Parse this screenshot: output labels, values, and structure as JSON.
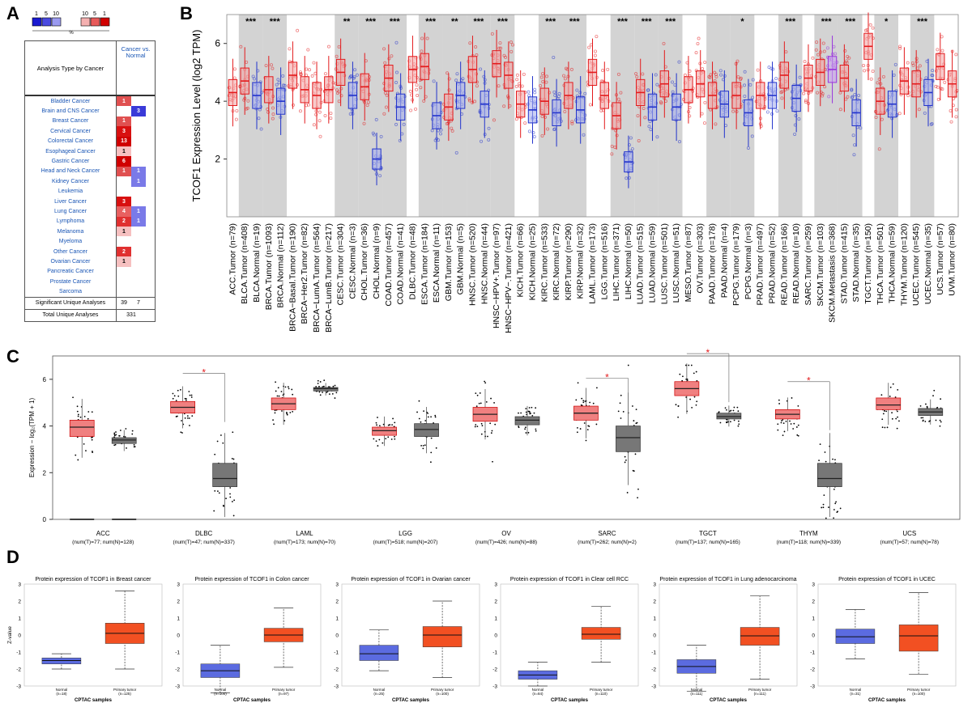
{
  "panel_labels": {
    "a": "A",
    "b": "B",
    "c": "C",
    "d": "D"
  },
  "panelA": {
    "legend_left": [
      "1",
      "5",
      "10"
    ],
    "legend_right": [
      "10",
      "5",
      "1"
    ],
    "legend_unit": "%",
    "legend_colors": [
      "#1a1ad1",
      "#4a4ae0",
      "#9a9af0",
      "#f4b0b0",
      "#e85a5a",
      "#d10000"
    ],
    "header_left": "Analysis Type by Cancer",
    "header_right": "Cancer vs. Normal",
    "rows": [
      {
        "name": "Bladder Cancer",
        "up": "1",
        "down": ""
      },
      {
        "name": "Brain and CNS Cancer",
        "up": "",
        "down": "3"
      },
      {
        "name": "Breast Cancer",
        "up": "1",
        "down": ""
      },
      {
        "name": "Cervical Cancer",
        "up": "3",
        "down": ""
      },
      {
        "name": "Colorectal Cancer",
        "up": "13",
        "down": ""
      },
      {
        "name": "Esophageal Cancer",
        "up": "1",
        "down": ""
      },
      {
        "name": "Gastric Cancer",
        "up": "6",
        "down": ""
      },
      {
        "name": "Head and Neck Cancer",
        "up": "1",
        "down": "1"
      },
      {
        "name": "Kidney Cancer",
        "up": "",
        "down": "1"
      },
      {
        "name": "Leukemia",
        "up": "",
        "down": ""
      },
      {
        "name": "Liver Cancer",
        "up": "3",
        "down": ""
      },
      {
        "name": "Lung Cancer",
        "up": "4",
        "down": "1"
      },
      {
        "name": "Lymphoma",
        "up": "2",
        "down": "1"
      },
      {
        "name": "Melanoma",
        "up": "1",
        "down": ""
      },
      {
        "name": "Myeloma",
        "up": "",
        "down": ""
      },
      {
        "name": "Other Cancer",
        "up": "2",
        "down": ""
      },
      {
        "name": "Ovarian Cancer",
        "up": "1",
        "down": ""
      },
      {
        "name": "Pancreatic Cancer",
        "up": "",
        "down": ""
      },
      {
        "name": "Prostate Cancer",
        "up": "",
        "down": ""
      },
      {
        "name": "Sarcoma",
        "up": "",
        "down": ""
      }
    ],
    "up_colors": {
      "1": "#e05050",
      "2": "#e03030",
      "3": "#d81010",
      "4": "#e86060",
      "6": "#d00000",
      "13": "#d00000"
    },
    "footer_sig_label": "Significant Unique Analyses",
    "footer_sig_up": "39",
    "footer_sig_down": "7",
    "footer_total_label": "Total Unique Analyses",
    "footer_total": "331"
  },
  "chart_data": [
    {
      "type": "box",
      "panel": "B",
      "ylabel": "TCOF1 Expression Level (log2 TPM)",
      "ylim": [
        0,
        7
      ],
      "yticks": [
        "2",
        "4",
        "6"
      ],
      "categories": [
        "ACC.Tumor (n=79)",
        "BLCA.Tumor (n=408)",
        "BLCA.Normal (n=19)",
        "BRCA.Tumor (n=1093)",
        "BRCA.Normal (n=112)",
        "BRCA−Basal.Tumor (n=190)",
        "BRCA−Her2.Tumor (n=82)",
        "BRCA−LumA.Tumor (n=564)",
        "BRCA−LumB.Tumor (n=217)",
        "CESC.Tumor (n=304)",
        "CESC.Normal (n=3)",
        "CHOL.Tumor (n=36)",
        "CHOL.Normal (n=9)",
        "COAD.Tumor (n=457)",
        "COAD.Normal (n=41)",
        "DLBC.Tumor (n=48)",
        "ESCA.Tumor (n=184)",
        "ESCA.Normal (n=11)",
        "GBM.Tumor (n=153)",
        "GBM.Normal (n=5)",
        "HNSC.Tumor (n=520)",
        "HNSC.Normal (n=44)",
        "HNSC−HPV+.Tumor (n=97)",
        "HNSC−HPV−.Tumor (n=421)",
        "KICH.Tumor (n=66)",
        "KICH.Normal (n=25)",
        "KIRC.Tumor (n=533)",
        "KIRC.Normal (n=72)",
        "KIRP.Tumor (n=290)",
        "KIRP.Normal (n=32)",
        "LAML.Tumor (n=173)",
        "LGG.Tumor (n=516)",
        "LIHC.Tumor (n=371)",
        "LIHC.Normal (n=50)",
        "LUAD.Tumor (n=515)",
        "LUAD.Normal (n=59)",
        "LUSC.Tumor (n=501)",
        "LUSC.Normal (n=51)",
        "MESO.Tumor (n=87)",
        "OV.Tumor (n=303)",
        "PAAD.Tumor (n=178)",
        "PAAD.Normal (n=4)",
        "PCPG.Tumor (n=179)",
        "PCPG.Normal (n=3)",
        "PRAD.Tumor (n=497)",
        "PRAD.Normal (n=52)",
        "READ.Tumor (n=166)",
        "READ.Normal (n=10)",
        "SARC.Tumor (n=259)",
        "SKCM.Tumor (n=103)",
        "SKCM.Metastasis (n=368)",
        "STAD.Tumor (n=415)",
        "STAD.Normal (n=35)",
        "TGCT.Tumor (n=150)",
        "THCA.Tumor (n=501)",
        "THCA.Normal (n=59)",
        "THYM.Tumor (n=120)",
        "UCEC.Tumor (n=545)",
        "UCEC.Normal (n=35)",
        "UCS.Tumor (n=57)",
        "UVM.Tumor (n=80)"
      ],
      "kinds": [
        "T",
        "T",
        "N",
        "T",
        "N",
        "T",
        "T",
        "T",
        "T",
        "T",
        "N",
        "T",
        "N",
        "T",
        "N",
        "T",
        "T",
        "N",
        "T",
        "N",
        "T",
        "N",
        "T",
        "T",
        "T",
        "N",
        "T",
        "N",
        "T",
        "N",
        "T",
        "T",
        "T",
        "N",
        "T",
        "N",
        "T",
        "N",
        "T",
        "T",
        "T",
        "N",
        "T",
        "N",
        "T",
        "N",
        "T",
        "N",
        "T",
        "T",
        "M",
        "T",
        "N",
        "T",
        "T",
        "N",
        "T",
        "T",
        "N",
        "T",
        "T"
      ],
      "medians": [
        4.3,
        4.7,
        4.2,
        4.4,
        4.0,
        4.9,
        4.4,
        4.2,
        4.4,
        5.0,
        4.2,
        4.5,
        2.0,
        4.8,
        3.8,
        5.1,
        5.2,
        3.5,
        3.8,
        4.2,
        5.1,
        3.9,
        5.3,
        4.9,
        3.9,
        3.7,
        4.0,
        3.6,
        4.2,
        3.7,
        5.0,
        4.2,
        3.5,
        1.9,
        4.3,
        3.8,
        4.6,
        3.8,
        4.4,
        4.6,
        4.2,
        3.9,
        4.2,
        3.6,
        4.2,
        4.2,
        4.9,
        4.1,
        4.8,
        5.0,
        5.1,
        4.8,
        3.6,
        5.9,
        4.0,
        3.9,
        4.7,
        4.6,
        4.3,
        5.2,
        4.6
      ],
      "significance": [
        "",
        "***",
        "",
        "***",
        "",
        "",
        "",
        "",
        "",
        "**",
        "",
        "***",
        "",
        "***",
        "",
        "",
        "***",
        "",
        "**",
        "",
        "***",
        "",
        "***",
        "",
        "",
        "",
        "***",
        "",
        "***",
        "",
        "",
        "",
        "***",
        "",
        "***",
        "",
        "***",
        "",
        "",
        "",
        "",
        "",
        "*",
        "",
        "",
        "",
        "***",
        "",
        "",
        "***",
        "",
        "***",
        "",
        "",
        "*",
        "",
        "",
        "***",
        "",
        "",
        ""
      ],
      "shaded_pairs": [
        [
          1,
          2
        ],
        [
          3,
          4
        ],
        [
          9,
          10
        ],
        [
          11,
          12
        ],
        [
          13,
          14
        ],
        [
          16,
          17
        ],
        [
          18,
          19
        ],
        [
          20,
          21
        ],
        [
          22,
          23
        ],
        [
          26,
          27
        ],
        [
          28,
          29
        ],
        [
          32,
          33
        ],
        [
          34,
          35
        ],
        [
          36,
          37
        ],
        [
          40,
          41
        ],
        [
          42,
          43
        ],
        [
          46,
          47
        ],
        [
          49,
          50
        ],
        [
          51,
          52
        ],
        [
          54,
          55
        ],
        [
          57,
          58
        ]
      ]
    },
    {
      "type": "box",
      "panel": "C",
      "ylabel": "Expression − log₂(TPM + 1)",
      "ylim": [
        0,
        7
      ],
      "yticks": [
        "0",
        "2",
        "4",
        "6"
      ],
      "groups": [
        {
          "name": "ACC",
          "counts": "(num(T)=77; num(N)=128)",
          "tumor": [
            3.55,
            3.95,
            4.25
          ],
          "normal": [
            3.25,
            3.4,
            3.5
          ],
          "sig": false
        },
        {
          "name": "DLBC",
          "counts": "(num(T)=47; num(N)=337)",
          "tumor": [
            4.55,
            4.8,
            5.05
          ],
          "normal": [
            1.4,
            1.75,
            2.4
          ],
          "sig": true
        },
        {
          "name": "LAML",
          "counts": "(num(T)=173; num(N)=70)",
          "tumor": [
            4.7,
            4.95,
            5.2
          ],
          "normal": [
            5.5,
            5.6,
            5.65
          ],
          "sig": false
        },
        {
          "name": "LGG",
          "counts": "(num(T)=518; num(N)=207)",
          "tumor": [
            3.6,
            3.8,
            3.95
          ],
          "normal": [
            3.55,
            3.85,
            4.1
          ],
          "sig": false
        },
        {
          "name": "OV",
          "counts": "(num(T)=426; num(N)=88)",
          "tumor": [
            4.2,
            4.5,
            4.8
          ],
          "normal": [
            4.05,
            4.25,
            4.4
          ],
          "sig": false
        },
        {
          "name": "SARC",
          "counts": "(num(T)=262; num(N)=2)",
          "tumor": [
            4.25,
            4.55,
            4.85
          ],
          "normal": [
            2.9,
            3.5,
            4.0
          ],
          "sig": true
        },
        {
          "name": "TGCT",
          "counts": "(num(T)=137; num(N)=165)",
          "tumor": [
            5.3,
            5.6,
            5.9
          ],
          "normal": [
            4.3,
            4.4,
            4.55
          ],
          "sig": true
        },
        {
          "name": "THYM",
          "counts": "(num(T)=118; num(N)=339)",
          "tumor": [
            4.3,
            4.5,
            4.7
          ],
          "normal": [
            1.4,
            1.75,
            2.4
          ],
          "sig": true
        },
        {
          "name": "UCS",
          "counts": "(num(T)=57; num(N)=78)",
          "tumor": [
            4.7,
            4.9,
            5.2
          ],
          "normal": [
            4.45,
            4.6,
            4.75
          ],
          "sig": false
        }
      ]
    },
    {
      "type": "box",
      "panel": "D",
      "ylabel": "Z-value",
      "ylim": [
        -3,
        3
      ],
      "yticks": [
        "3",
        "2",
        "1",
        "0",
        "-1",
        "-2",
        "-3"
      ],
      "xlabel": "CPTAC samples",
      "subplots": [
        {
          "title": "Protein expression of TCOF1 in Breast cancer",
          "normal_label": "Normal",
          "normal_n": "(n=18)",
          "tumor_label": "Primary tumor",
          "tumor_n": "(n=125)",
          "normal": [
            -2.0,
            -1.7,
            -1.5,
            -1.35,
            -1.1
          ],
          "tumor": [
            -2.0,
            -0.5,
            0.1,
            0.7,
            2.6
          ]
        },
        {
          "title": "Protein expression of TCOF1 in Colon cancer",
          "normal_label": "Normal",
          "normal_n": "(n=100)",
          "tumor_label": "Primary tumor",
          "tumor_n": "(n=97)",
          "normal": [
            -3.4,
            -2.5,
            -2.1,
            -1.7,
            -0.6
          ],
          "tumor": [
            -1.9,
            -0.4,
            0.0,
            0.4,
            1.6
          ]
        },
        {
          "title": "Protein expression of TCOF1 in Ovarian cancer",
          "normal_label": "Normal",
          "normal_n": "(n=25)",
          "tumor_label": "Primary tumor",
          "tumor_n": "(n=100)",
          "normal": [
            -2.1,
            -1.5,
            -1.1,
            -0.6,
            0.3
          ],
          "tumor": [
            -2.5,
            -0.7,
            0.0,
            0.5,
            2.0
          ]
        },
        {
          "title": "Protein expression of TCOF1 in Clear cell RCC",
          "normal_label": "Normal",
          "normal_n": "(n=84)",
          "tumor_label": "Primary tumor",
          "tumor_n": "(n=110)",
          "normal": [
            -3.0,
            -2.6,
            -2.35,
            -2.1,
            -1.6
          ],
          "tumor": [
            -1.6,
            -0.25,
            0.05,
            0.45,
            1.7
          ]
        },
        {
          "title": "Protein expression of TCOF1 in Lung adenocarcinoma",
          "normal_label": "Normal",
          "normal_n": "(n=111)",
          "tumor_label": "Primary tumor",
          "tumor_n": "(n=111)",
          "normal": [
            -3.3,
            -2.25,
            -1.85,
            -1.45,
            -0.6
          ],
          "tumor": [
            -2.6,
            -0.6,
            -0.05,
            0.45,
            2.3
          ]
        },
        {
          "title": "Protein expression of TCOF1 in UCEC",
          "normal_label": "Normal",
          "normal_n": "(n=31)",
          "tumor_label": "Primary tumor",
          "tumor_n": "(n=100)",
          "normal": [
            -1.4,
            -0.5,
            -0.1,
            0.35,
            1.5
          ],
          "tumor": [
            -2.3,
            -0.95,
            -0.05,
            0.6,
            2.5
          ]
        }
      ]
    }
  ],
  "colors": {
    "tumor": "#e31a1c",
    "normal": "#2233cc",
    "metastasis": "#9933dd",
    "shade": "#d3d3d3",
    "box_tumor_c": "#f08080",
    "box_normal_c": "#777777",
    "d_normal": "#5b6be0",
    "d_tumor": "#f25022",
    "sig_star": "#e31a1c"
  }
}
